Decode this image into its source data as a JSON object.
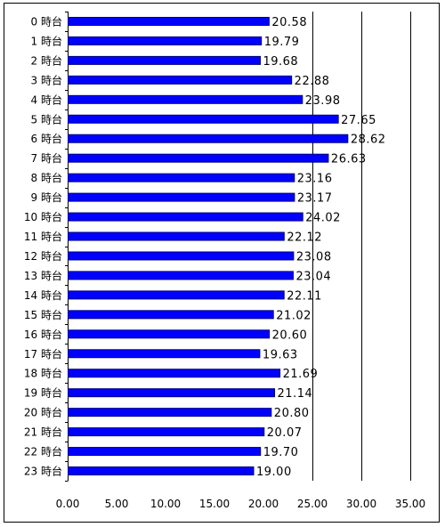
{
  "chart_data": {
    "type": "bar",
    "orientation": "horizontal",
    "categories": [
      "0 時台",
      "1 時台",
      "2 時台",
      "3 時台",
      "4 時台",
      "5 時台",
      "6 時台",
      "7 時台",
      "8 時台",
      "9 時台",
      "10 時台",
      "11 時台",
      "12 時台",
      "13 時台",
      "14 時台",
      "15 時台",
      "16 時台",
      "17 時台",
      "18 時台",
      "19 時台",
      "20 時台",
      "21 時台",
      "22 時台",
      "23 時台"
    ],
    "values": [
      20.58,
      19.79,
      19.68,
      22.88,
      23.98,
      27.65,
      28.62,
      26.63,
      23.16,
      23.17,
      24.02,
      22.12,
      23.08,
      23.04,
      22.11,
      21.02,
      20.6,
      19.63,
      21.69,
      21.14,
      20.8,
      20.07,
      19.7,
      19.0
    ],
    "value_labels": [
      "20.58",
      "19.79",
      "19.68",
      "22.88",
      "23.98",
      "27.65",
      "28.62",
      "26.63",
      "23.16",
      "23.17",
      "24.02",
      "22.12",
      "23.08",
      "23.04",
      "22.11",
      "21.02",
      "20.60",
      "19.63",
      "21.69",
      "21.14",
      "20.80",
      "20.07",
      "19.70",
      "19.00"
    ],
    "x_ticks": [
      "0.00",
      "5.00",
      "10.00",
      "15.00",
      "20.00",
      "25.00",
      "30.00",
      "35.00"
    ],
    "xlim": [
      0,
      35
    ],
    "title": "",
    "xlabel": "",
    "ylabel": "",
    "grid": "vertical lines at 25, 30, 35",
    "legend": "none",
    "bar_color": "#0000ff",
    "bar_outline_color": "#000080"
  }
}
